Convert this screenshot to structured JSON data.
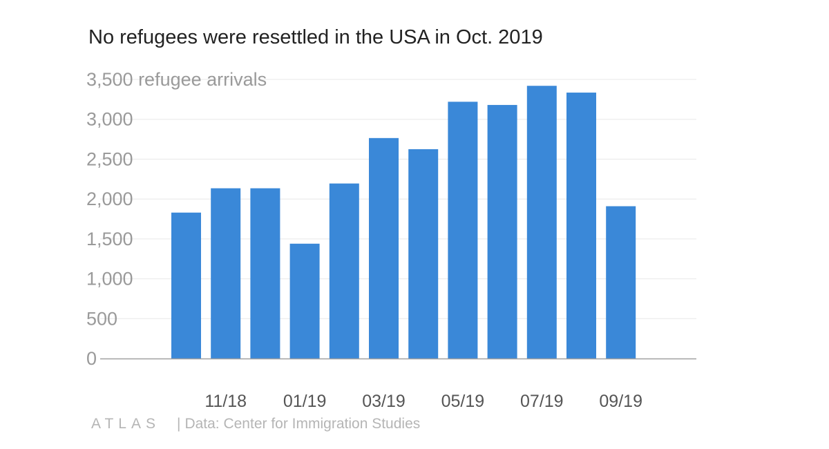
{
  "chart_data": {
    "type": "bar",
    "title": "No refugees were resettled in the USA in Oct. 2019",
    "ylabel_inline": "refugee arrivals",
    "ylim": [
      0,
      3500
    ],
    "yticks": [
      0,
      500,
      1000,
      1500,
      2000,
      2500,
      3000,
      3500
    ],
    "ytick_labels": [
      "0",
      "500",
      "1,000",
      "1,500",
      "2,000",
      "2,500",
      "3,000",
      "3,500"
    ],
    "categories": [
      "10/18",
      "11/18",
      "12/18",
      "01/19",
      "02/19",
      "03/19",
      "04/19",
      "05/19",
      "06/19",
      "07/19",
      "08/19",
      "09/19",
      "10/19"
    ],
    "xtick_labels_shown": [
      "11/18",
      "01/19",
      "03/19",
      "05/19",
      "07/19",
      "09/19"
    ],
    "values": [
      1830,
      2135,
      2135,
      1440,
      2195,
      2765,
      2625,
      3220,
      3180,
      3420,
      3335,
      1910,
      0
    ],
    "bar_color": "#3a88d8",
    "grid": true
  },
  "footer": {
    "logo": "ATLAS",
    "source": "Data: Center for Immigration Studies"
  }
}
